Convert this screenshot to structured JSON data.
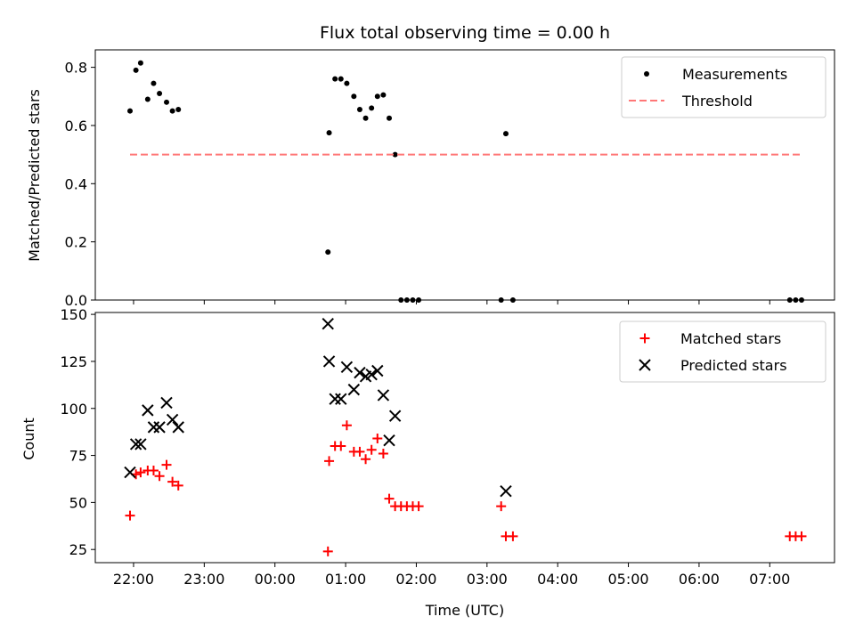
{
  "chart_data": [
    {
      "type": "scatter",
      "title": "Flux total observing time = 0.00 h",
      "ylabel": "Matched/Predicted stars",
      "ylim": [
        0,
        0.86
      ],
      "yticks": [
        "0.0",
        "0.2",
        "0.4",
        "0.6",
        "0.8"
      ],
      "legend": "top-right",
      "series": [
        {
          "name": "Measurements",
          "kind": "dot",
          "color": "#000000",
          "points": [
            [
              "21:57",
              0.65
            ],
            [
              "22:02",
              0.79
            ],
            [
              "22:06",
              0.815
            ],
            [
              "22:12",
              0.69
            ],
            [
              "22:17",
              0.745
            ],
            [
              "22:22",
              0.71
            ],
            [
              "22:28",
              0.68
            ],
            [
              "22:33",
              0.65
            ],
            [
              "22:38",
              0.655
            ],
            [
              "00:45",
              0.165
            ],
            [
              "00:46",
              0.575
            ],
            [
              "00:51",
              0.76
            ],
            [
              "00:56",
              0.76
            ],
            [
              "01:01",
              0.745
            ],
            [
              "01:07",
              0.7
            ],
            [
              "01:12",
              0.655
            ],
            [
              "01:17",
              0.625
            ],
            [
              "01:22",
              0.66
            ],
            [
              "01:27",
              0.7
            ],
            [
              "01:32",
              0.705
            ],
            [
              "01:37",
              0.625
            ],
            [
              "01:42",
              0.5
            ],
            [
              "01:47",
              0.0
            ],
            [
              "01:52",
              0.0
            ],
            [
              "01:57",
              0.0
            ],
            [
              "02:02",
              0.0
            ],
            [
              "03:12",
              0.0
            ],
            [
              "03:16",
              0.572
            ],
            [
              "03:22",
              0.0
            ],
            [
              "07:17",
              0.0
            ],
            [
              "07:22",
              0.0
            ],
            [
              "07:27",
              0.0
            ]
          ]
        },
        {
          "name": "Threshold",
          "kind": "dashed-line",
          "color": "#ff7777",
          "points": [
            [
              "21:57",
              0.5
            ],
            [
              "07:27",
              0.5
            ]
          ]
        }
      ]
    },
    {
      "type": "scatter",
      "xlabel": "Time (UTC)",
      "ylabel": "Count",
      "ylim": [
        18,
        151
      ],
      "yticks": [
        "25",
        "50",
        "75",
        "100",
        "125",
        "150"
      ],
      "xticks": [
        "22:00",
        "23:00",
        "00:00",
        "01:00",
        "02:00",
        "03:00",
        "04:00",
        "05:00",
        "06:00",
        "07:00"
      ],
      "legend": "top-right",
      "series": [
        {
          "name": "Matched stars",
          "kind": "plus",
          "color": "#ff0000",
          "points": [
            [
              "21:57",
              43
            ],
            [
              "22:02",
              65
            ],
            [
              "22:06",
              66
            ],
            [
              "22:12",
              67
            ],
            [
              "22:17",
              67
            ],
            [
              "22:22",
              64
            ],
            [
              "22:28",
              70
            ],
            [
              "22:33",
              61
            ],
            [
              "22:38",
              59
            ],
            [
              "00:45",
              24
            ],
            [
              "00:46",
              72
            ],
            [
              "00:51",
              80
            ],
            [
              "00:56",
              80
            ],
            [
              "01:01",
              91
            ],
            [
              "01:07",
              77
            ],
            [
              "01:12",
              77
            ],
            [
              "01:17",
              73
            ],
            [
              "01:22",
              78
            ],
            [
              "01:27",
              84
            ],
            [
              "01:32",
              76
            ],
            [
              "01:37",
              52
            ],
            [
              "01:42",
              48
            ],
            [
              "01:47",
              48
            ],
            [
              "01:52",
              48
            ],
            [
              "01:57",
              48
            ],
            [
              "02:02",
              48
            ],
            [
              "03:12",
              48
            ],
            [
              "03:16",
              32
            ],
            [
              "03:22",
              32
            ],
            [
              "07:17",
              32
            ],
            [
              "07:22",
              32
            ],
            [
              "07:27",
              32
            ]
          ]
        },
        {
          "name": "Predicted stars",
          "kind": "cross",
          "color": "#000000",
          "points": [
            [
              "21:57",
              66
            ],
            [
              "22:02",
              81
            ],
            [
              "22:06",
              81
            ],
            [
              "22:12",
              99
            ],
            [
              "22:17",
              90
            ],
            [
              "22:22",
              90
            ],
            [
              "22:28",
              103
            ],
            [
              "22:33",
              94
            ],
            [
              "22:38",
              90
            ],
            [
              "00:45",
              145
            ],
            [
              "00:46",
              125
            ],
            [
              "00:51",
              105
            ],
            [
              "00:56",
              105
            ],
            [
              "01:01",
              122
            ],
            [
              "01:07",
              110
            ],
            [
              "01:12",
              119
            ],
            [
              "01:17",
              117
            ],
            [
              "01:22",
              118
            ],
            [
              "01:27",
              120
            ],
            [
              "01:32",
              107
            ],
            [
              "01:37",
              83
            ],
            [
              "01:42",
              96
            ],
            [
              "03:16",
              56
            ]
          ]
        }
      ]
    }
  ]
}
